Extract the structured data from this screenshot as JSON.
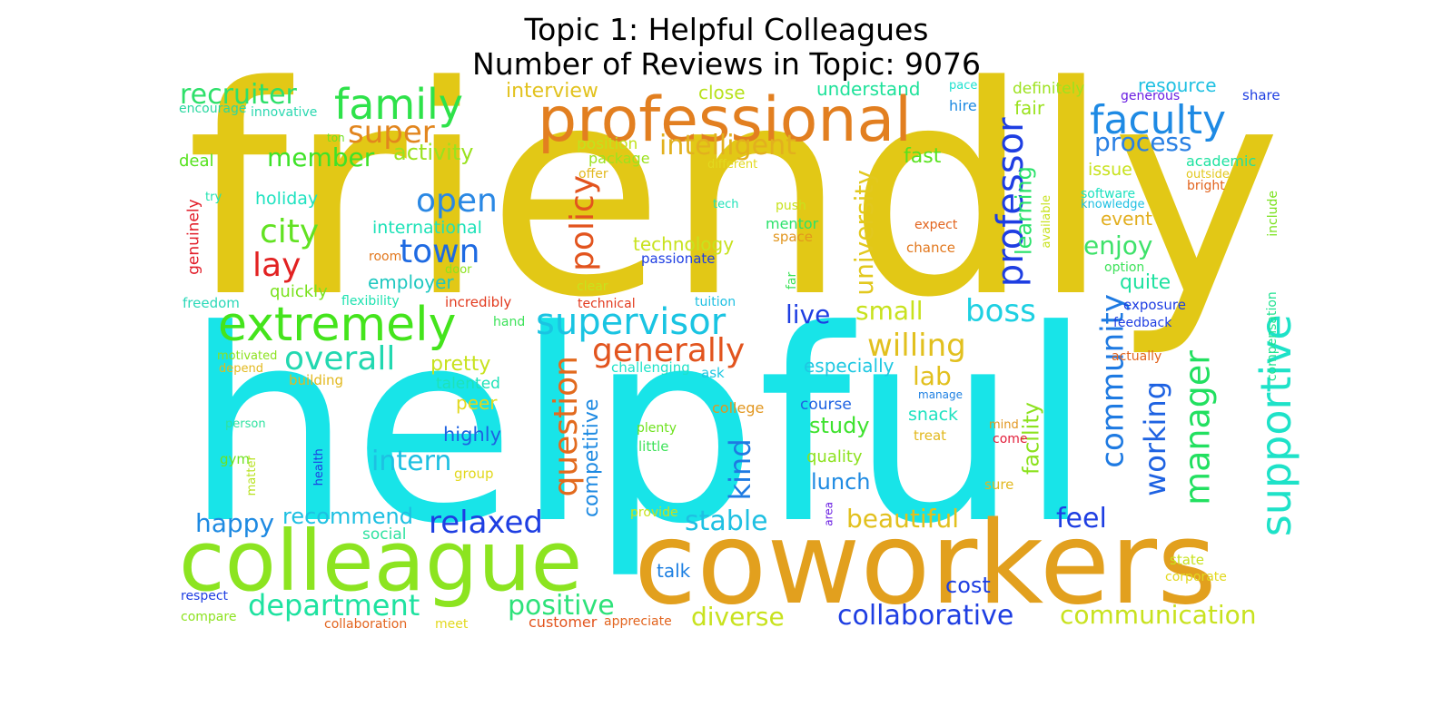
{
  "title": "Topic 1: Helpful Colleagues",
  "subtitle": "Number of Reviews in Topic: 9076",
  "words": [
    {
      "text": "friendly",
      "color": "#e2c816"
    },
    {
      "text": "helpful",
      "color": "#18e4e8"
    },
    {
      "text": "coworkers",
      "color": "#e2a01e"
    },
    {
      "text": "colleague",
      "color": "#8ce420"
    },
    {
      "text": "professional",
      "color": "#e27f20"
    },
    {
      "text": "family",
      "color": "#2ee24a"
    },
    {
      "text": "faculty",
      "color": "#1e8ae4"
    },
    {
      "text": "extremely",
      "color": "#44e41c"
    },
    {
      "text": "supervisor",
      "color": "#1ac4e2"
    },
    {
      "text": "supportive",
      "color": "#1ee2c8"
    },
    {
      "text": "manager",
      "color": "#22e060"
    },
    {
      "text": "community",
      "color": "#1e7ae2"
    },
    {
      "text": "recruiter",
      "color": "#2ee06a"
    },
    {
      "text": "super",
      "color": "#e2861e"
    },
    {
      "text": "process",
      "color": "#2a80e4"
    },
    {
      "text": "intelligent",
      "color": "#e2b01e"
    },
    {
      "text": "open",
      "color": "#2a88e4"
    },
    {
      "text": "town",
      "color": "#1e6ae2"
    },
    {
      "text": "city",
      "color": "#62e222"
    },
    {
      "text": "lay",
      "color": "#e22222"
    },
    {
      "text": "overall",
      "color": "#22d8b0"
    },
    {
      "text": "generally",
      "color": "#e2541e"
    },
    {
      "text": "willing",
      "color": "#e2c01e"
    },
    {
      "text": "boss",
      "color": "#1ed0e2"
    },
    {
      "text": "policy",
      "color": "#e2541e"
    },
    {
      "text": "question",
      "color": "#e26a1e"
    },
    {
      "text": "professor",
      "color": "#1e3ee2"
    },
    {
      "text": "university",
      "color": "#e2c81e"
    },
    {
      "text": "working",
      "color": "#1e62e2"
    },
    {
      "text": "member",
      "color": "#3ee228"
    },
    {
      "text": "activity",
      "color": "#9ae21e"
    },
    {
      "text": "interview",
      "color": "#e2c21e"
    },
    {
      "text": "close",
      "color": "#b8e21e"
    },
    {
      "text": "understand",
      "color": "#1ee29a"
    },
    {
      "text": "definitely",
      "color": "#9ce21e"
    },
    {
      "text": "resource",
      "color": "#1ec0e2"
    },
    {
      "text": "share",
      "color": "#1e3ee2"
    },
    {
      "text": "generous",
      "color": "#6a1ee2"
    },
    {
      "text": "pace",
      "color": "#1ee2d0"
    },
    {
      "text": "hire",
      "color": "#1e8ae2"
    },
    {
      "text": "fair",
      "color": "#9ae21e"
    },
    {
      "text": "encourage",
      "color": "#2ad8a0"
    },
    {
      "text": "innovative",
      "color": "#2ad8b0"
    },
    {
      "text": "ton",
      "color": "#6ee21e"
    },
    {
      "text": "deal",
      "color": "#56e21e"
    },
    {
      "text": "position",
      "color": "#c2e21e"
    },
    {
      "text": "package",
      "color": "#9ce21e"
    },
    {
      "text": "different",
      "color": "#e2d81e"
    },
    {
      "text": "offer",
      "color": "#e2b81e"
    },
    {
      "text": "fast",
      "color": "#58e21e"
    },
    {
      "text": "learning",
      "color": "#2ae26a"
    },
    {
      "text": "available",
      "color": "#c8e21e"
    },
    {
      "text": "issue",
      "color": "#c8e21e"
    },
    {
      "text": "academic",
      "color": "#1ee2a0"
    },
    {
      "text": "outside",
      "color": "#e2c81e"
    },
    {
      "text": "bright",
      "color": "#e2641e"
    },
    {
      "text": "software",
      "color": "#1ee2c0"
    },
    {
      "text": "knowledge",
      "color": "#1ec0e2"
    },
    {
      "text": "include",
      "color": "#7ae21e"
    },
    {
      "text": "try",
      "color": "#1ee2b0"
    },
    {
      "text": "holiday",
      "color": "#1ee2c0"
    },
    {
      "text": "genuinely",
      "color": "#e21e2a"
    },
    {
      "text": "international",
      "color": "#1ee2b8"
    },
    {
      "text": "tech",
      "color": "#1ee2b8"
    },
    {
      "text": "push",
      "color": "#c8e21e"
    },
    {
      "text": "mentor",
      "color": "#2ae26a"
    },
    {
      "text": "space",
      "color": "#e2961e"
    },
    {
      "text": "technology",
      "color": "#c8e21e"
    },
    {
      "text": "passionate",
      "color": "#1e3ee2"
    },
    {
      "text": "expect",
      "color": "#e2641e"
    },
    {
      "text": "chance",
      "color": "#e2781e"
    },
    {
      "text": "event",
      "color": "#e2ae1e"
    },
    {
      "text": "enjoy",
      "color": "#3ee26a"
    },
    {
      "text": "option",
      "color": "#3ee25a"
    },
    {
      "text": "quite",
      "color": "#1ee2a0"
    },
    {
      "text": "room",
      "color": "#e2781e"
    },
    {
      "text": "door",
      "color": "#8ce21e"
    },
    {
      "text": "employer",
      "color": "#1ec8c0"
    },
    {
      "text": "clear",
      "color": "#c8e21e"
    },
    {
      "text": "far",
      "color": "#3ee25a"
    },
    {
      "text": "freedom",
      "color": "#2ad8b8"
    },
    {
      "text": "quickly",
      "color": "#7ae21e"
    },
    {
      "text": "flexibility",
      "color": "#1ee2b0"
    },
    {
      "text": "incredibly",
      "color": "#e23a1e"
    },
    {
      "text": "technical",
      "color": "#e23a1e"
    },
    {
      "text": "tuition",
      "color": "#1ec0e2"
    },
    {
      "text": "live",
      "color": "#1e3ee2"
    },
    {
      "text": "small",
      "color": "#c8e21e"
    },
    {
      "text": "exposure",
      "color": "#1e3ee2"
    },
    {
      "text": "compensation",
      "color": "#1ee290"
    },
    {
      "text": "feedback",
      "color": "#1e3ee2"
    },
    {
      "text": "hand",
      "color": "#3ee25a"
    },
    {
      "text": "motivated",
      "color": "#8ce21e"
    },
    {
      "text": "depend",
      "color": "#e2b81e"
    },
    {
      "text": "building",
      "color": "#e2b81e"
    },
    {
      "text": "pretty",
      "color": "#c8e21e"
    },
    {
      "text": "talented",
      "color": "#1ee2b8"
    },
    {
      "text": "peer",
      "color": "#e2d81e"
    },
    {
      "text": "challenging",
      "color": "#1ee2c8"
    },
    {
      "text": "ask",
      "color": "#1ec8e2"
    },
    {
      "text": "especially",
      "color": "#1ec8e2"
    },
    {
      "text": "lab",
      "color": "#e2c01e"
    },
    {
      "text": "actually",
      "color": "#e2641e"
    },
    {
      "text": "manage",
      "color": "#1e80e2"
    },
    {
      "text": "facility",
      "color": "#8ce21e"
    },
    {
      "text": "course",
      "color": "#1e62e2"
    },
    {
      "text": "college",
      "color": "#e2961e"
    },
    {
      "text": "study",
      "color": "#3ee22e"
    },
    {
      "text": "snack",
      "color": "#1ee2c0"
    },
    {
      "text": "mind",
      "color": "#e2961e"
    },
    {
      "text": "come",
      "color": "#e21e3a"
    },
    {
      "text": "treat",
      "color": "#e2b81e"
    },
    {
      "text": "competitive",
      "color": "#1e8ae2"
    },
    {
      "text": "person",
      "color": "#2ee2a0"
    },
    {
      "text": "health",
      "color": "#1e3ee2"
    },
    {
      "text": "gym",
      "color": "#6ee21e"
    },
    {
      "text": "matter",
      "color": "#b8e21e"
    },
    {
      "text": "highly",
      "color": "#1e62e2"
    },
    {
      "text": "intern",
      "color": "#1ec0e2"
    },
    {
      "text": "group",
      "color": "#e2d81e"
    },
    {
      "text": "plenty",
      "color": "#6ee21e"
    },
    {
      "text": "little",
      "color": "#3ee25a"
    },
    {
      "text": "kind",
      "color": "#1e7ae2"
    },
    {
      "text": "quality",
      "color": "#8ce21e"
    },
    {
      "text": "lunch",
      "color": "#1e8ae2"
    },
    {
      "text": "area",
      "color": "#6a1ee2"
    },
    {
      "text": "sure",
      "color": "#e2b81e"
    },
    {
      "text": "happy",
      "color": "#1e8ae2"
    },
    {
      "text": "recommend",
      "color": "#1ec0e2"
    },
    {
      "text": "relaxed",
      "color": "#1e3ee2"
    },
    {
      "text": "provide",
      "color": "#c8e21e"
    },
    {
      "text": "stable",
      "color": "#1ec0e2"
    },
    {
      "text": "beautiful",
      "color": "#e2c01e"
    },
    {
      "text": "feel",
      "color": "#1e3ee2"
    },
    {
      "text": "social",
      "color": "#2ee2a0"
    },
    {
      "text": "state",
      "color": "#c8e21e"
    },
    {
      "text": "corporate",
      "color": "#e2d81e"
    },
    {
      "text": "talk",
      "color": "#1e80e2"
    },
    {
      "text": "cost",
      "color": "#1e3ee2"
    },
    {
      "text": "department",
      "color": "#1ee2a0"
    },
    {
      "text": "positive",
      "color": "#2ee27a"
    },
    {
      "text": "respect",
      "color": "#1e3ee2"
    },
    {
      "text": "compare",
      "color": "#8ce21e"
    },
    {
      "text": "collaboration",
      "color": "#e2641e"
    },
    {
      "text": "meet",
      "color": "#e2d81e"
    },
    {
      "text": "customer",
      "color": "#e2541e"
    },
    {
      "text": "appreciate",
      "color": "#e2641e"
    },
    {
      "text": "diverse",
      "color": "#c8e21e"
    },
    {
      "text": "collaborative",
      "color": "#1e3ee2"
    },
    {
      "text": "communication",
      "color": "#c8e21e"
    }
  ]
}
